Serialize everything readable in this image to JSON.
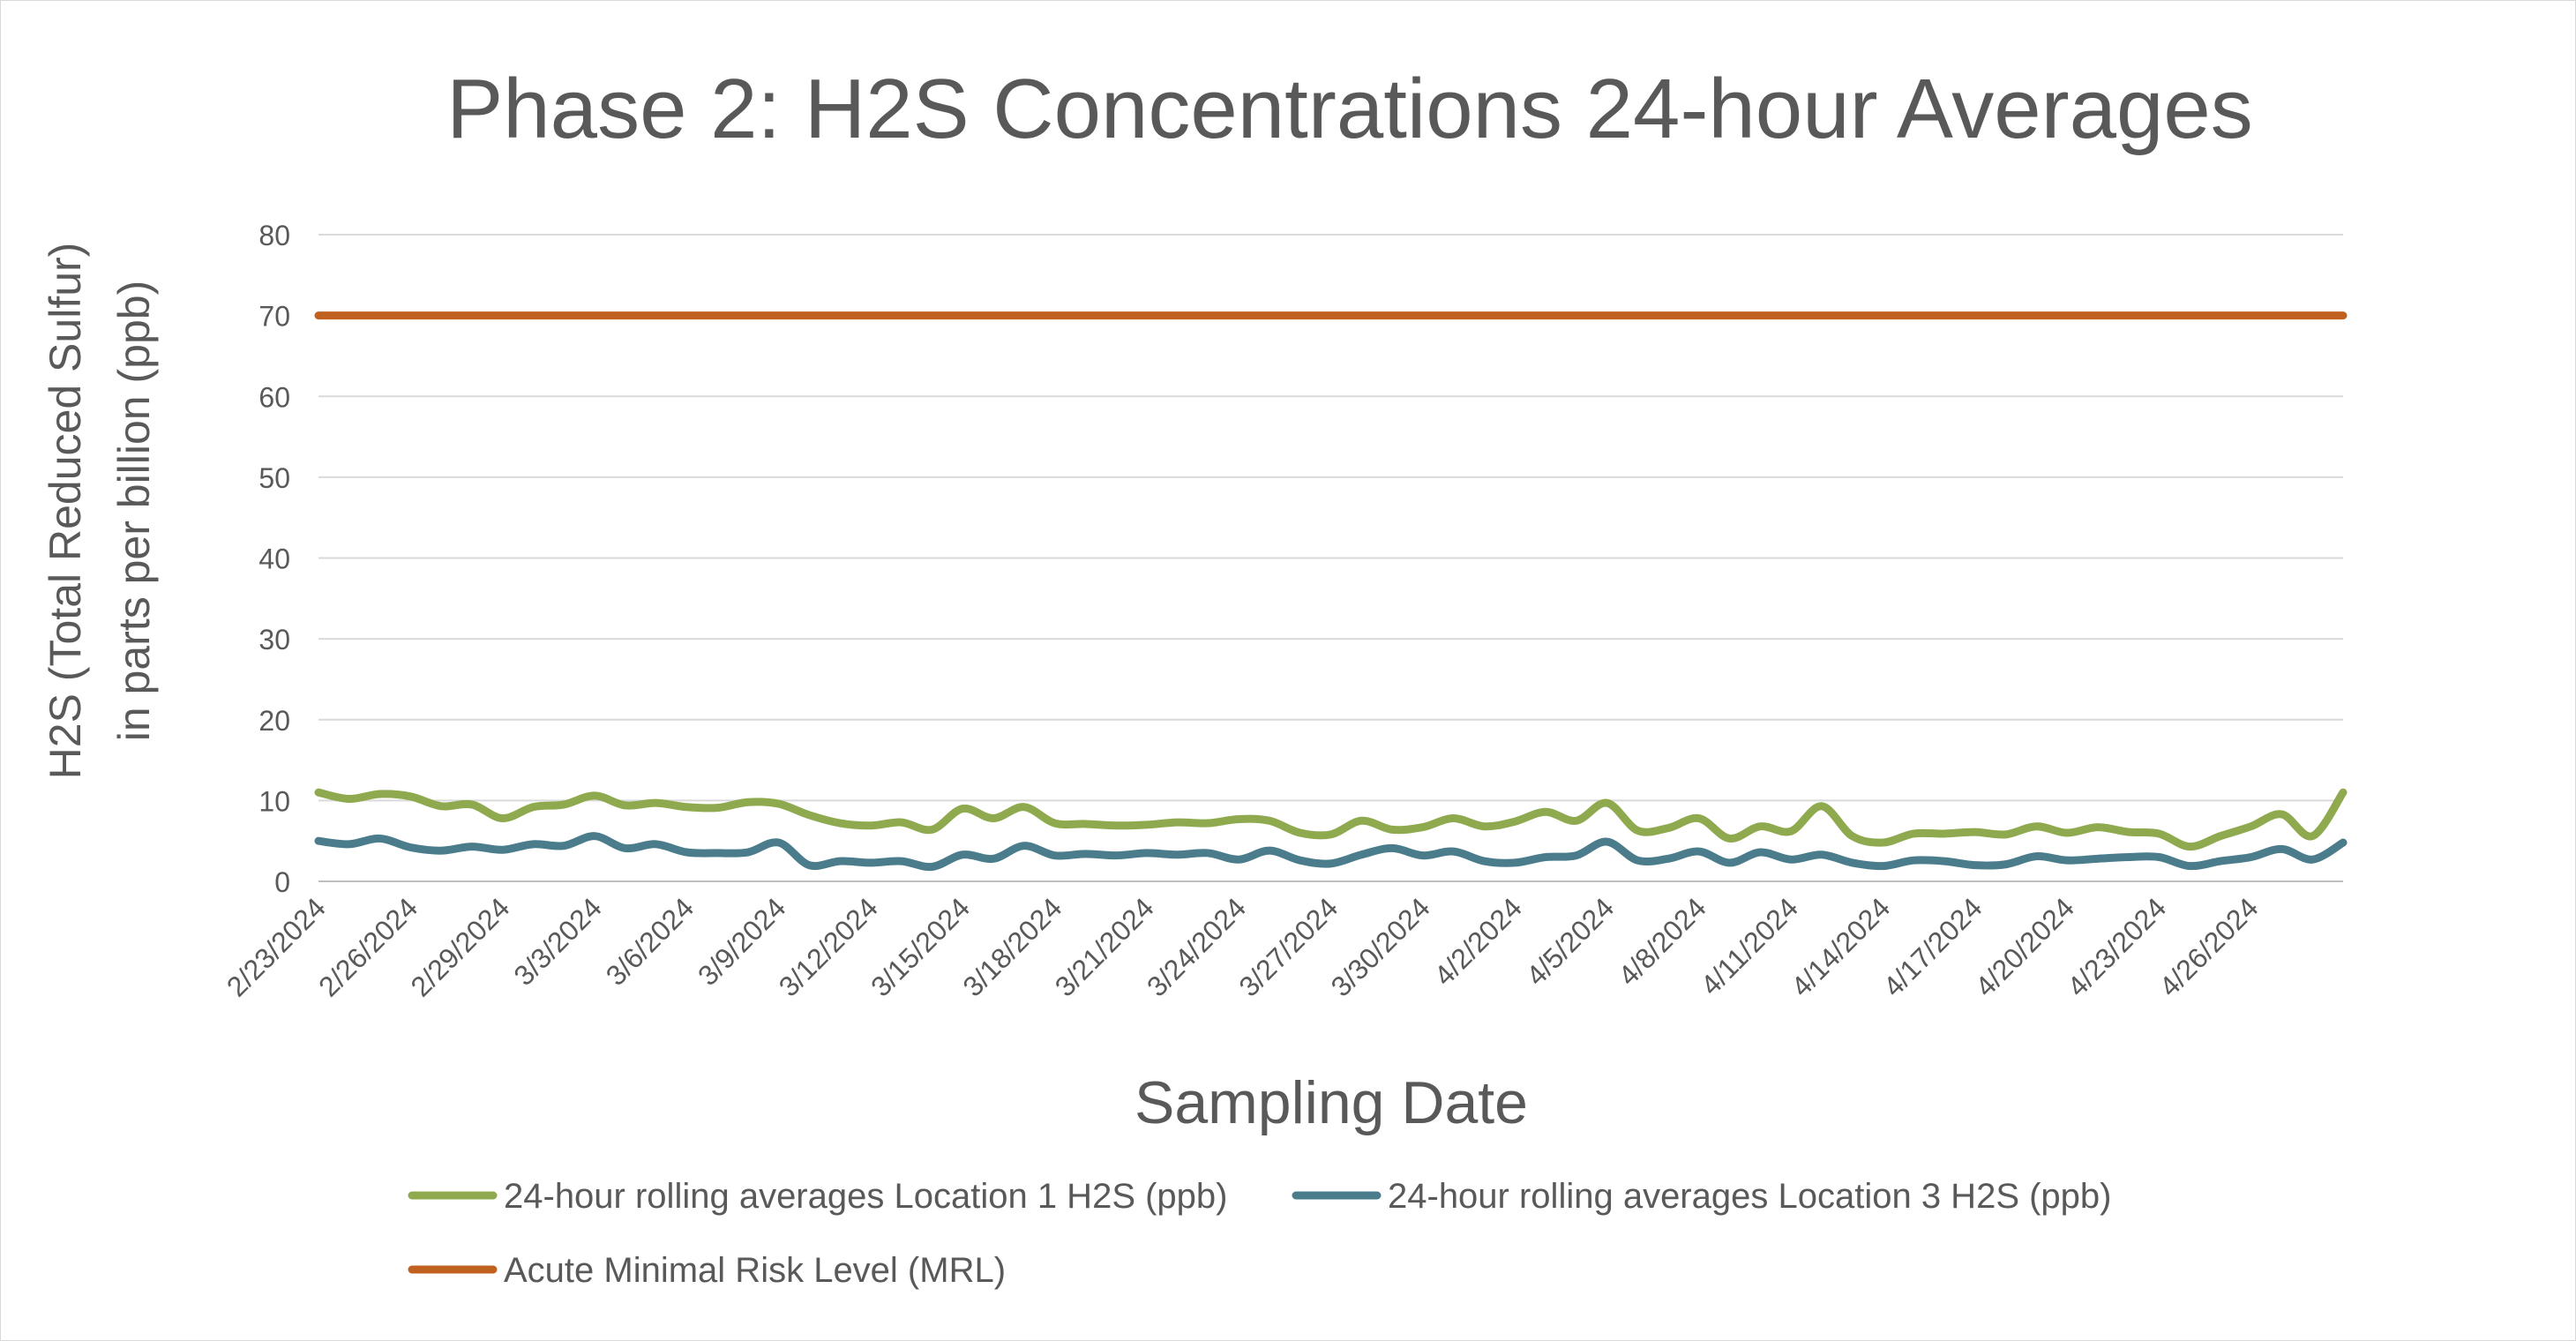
{
  "chart_data": {
    "type": "line",
    "title": "Phase 2: H2S Concentrations 24-hour Averages",
    "xlabel": "Sampling Date",
    "ylabel_lines": [
      "H2S (Total Reduced Sulfur)",
      "in parts per billion (ppb)"
    ],
    "ylim": [
      0,
      80
    ],
    "yticks": [
      0,
      10,
      20,
      30,
      40,
      50,
      60,
      70,
      80
    ],
    "x_start": "2/23/2024",
    "x_end": "4/29/2024",
    "x_tick_labels": [
      "2/23/2024",
      "2/26/2024",
      "2/29/2024",
      "3/3/2024",
      "3/6/2024",
      "3/9/2024",
      "3/12/2024",
      "3/15/2024",
      "3/18/2024",
      "3/21/2024",
      "3/24/2024",
      "3/27/2024",
      "3/30/2024",
      "4/2/2024",
      "4/5/2024",
      "4/8/2024",
      "4/11/2024",
      "4/14/2024",
      "4/17/2024",
      "4/20/2024",
      "4/23/2024",
      "4/26/2024"
    ],
    "grid": true,
    "legend_position": "bottom",
    "series": [
      {
        "name": "24-hour rolling averages Location 1 H2S (ppb)",
        "color": "#8faa4e",
        "x": [
          "2/23/2024",
          "2/24/2024",
          "2/25/2024",
          "2/26/2024",
          "2/27/2024",
          "2/28/2024",
          "2/29/2024",
          "3/1/2024",
          "3/2/2024",
          "3/3/2024",
          "3/4/2024",
          "3/5/2024",
          "3/6/2024",
          "3/7/2024",
          "3/8/2024",
          "3/9/2024",
          "3/10/2024",
          "3/11/2024",
          "3/12/2024",
          "3/13/2024",
          "3/14/2024",
          "3/15/2024",
          "3/16/2024",
          "3/17/2024",
          "3/18/2024",
          "3/19/2024",
          "3/20/2024",
          "3/21/2024",
          "3/22/2024",
          "3/23/2024",
          "3/24/2024",
          "3/25/2024",
          "3/26/2024",
          "3/27/2024",
          "3/28/2024",
          "3/29/2024",
          "3/30/2024",
          "3/31/2024",
          "4/1/2024",
          "4/2/2024",
          "4/3/2024",
          "4/4/2024",
          "4/5/2024",
          "4/6/2024",
          "4/7/2024",
          "4/8/2024",
          "4/9/2024",
          "4/10/2024",
          "4/11/2024",
          "4/12/2024",
          "4/13/2024",
          "4/14/2024",
          "4/15/2024",
          "4/16/2024",
          "4/17/2024",
          "4/18/2024",
          "4/19/2024",
          "4/20/2024",
          "4/21/2024",
          "4/22/2024",
          "4/23/2024",
          "4/24/2024",
          "4/25/2024",
          "4/26/2024",
          "4/27/2024",
          "4/28/2024",
          "4/29/2024"
        ],
        "values": [
          11,
          10.2,
          10.8,
          10.5,
          9.3,
          9.5,
          7.8,
          9.2,
          9.5,
          10.6,
          9.4,
          9.7,
          9.2,
          9.1,
          9.8,
          9.6,
          8.2,
          7.2,
          6.9,
          7.3,
          6.4,
          9.0,
          7.8,
          9.2,
          7.2,
          7.1,
          6.9,
          7.0,
          7.3,
          7.2,
          7.7,
          7.5,
          6.0,
          5.8,
          7.5,
          6.4,
          6.7,
          7.8,
          6.8,
          7.4,
          8.6,
          7.5,
          9.7,
          6.3,
          6.6,
          7.8,
          5.3,
          6.8,
          6.2,
          9.3,
          5.6,
          4.8,
          5.9,
          5.9,
          6.1,
          5.8,
          6.8,
          6.0,
          6.7,
          6.1,
          5.9,
          4.3,
          5.6,
          6.8,
          8.3,
          5.6,
          11
        ]
      },
      {
        "name": "24-hour rolling averages Location 3 H2S (ppb)",
        "color": "#4a7c8c",
        "x": [
          "2/23/2024",
          "2/24/2024",
          "2/25/2024",
          "2/26/2024",
          "2/27/2024",
          "2/28/2024",
          "2/29/2024",
          "3/1/2024",
          "3/2/2024",
          "3/3/2024",
          "3/4/2024",
          "3/5/2024",
          "3/6/2024",
          "3/7/2024",
          "3/8/2024",
          "3/9/2024",
          "3/10/2024",
          "3/11/2024",
          "3/12/2024",
          "3/13/2024",
          "3/14/2024",
          "3/15/2024",
          "3/16/2024",
          "3/17/2024",
          "3/18/2024",
          "3/19/2024",
          "3/20/2024",
          "3/21/2024",
          "3/22/2024",
          "3/23/2024",
          "3/24/2024",
          "3/25/2024",
          "3/26/2024",
          "3/27/2024",
          "3/28/2024",
          "3/29/2024",
          "3/30/2024",
          "3/31/2024",
          "4/1/2024",
          "4/2/2024",
          "4/3/2024",
          "4/4/2024",
          "4/5/2024",
          "4/6/2024",
          "4/7/2024",
          "4/8/2024",
          "4/9/2024",
          "4/10/2024",
          "4/11/2024",
          "4/12/2024",
          "4/13/2024",
          "4/14/2024",
          "4/15/2024",
          "4/16/2024",
          "4/17/2024",
          "4/18/2024",
          "4/19/2024",
          "4/20/2024",
          "4/21/2024",
          "4/22/2024",
          "4/23/2024",
          "4/24/2024",
          "4/25/2024",
          "4/26/2024",
          "4/27/2024",
          "4/28/2024",
          "4/29/2024"
        ],
        "values": [
          5,
          4.6,
          5.3,
          4.2,
          3.8,
          4.3,
          3.9,
          4.6,
          4.4,
          5.6,
          4.1,
          4.6,
          3.6,
          3.5,
          3.6,
          4.8,
          2.0,
          2.5,
          2.3,
          2.5,
          1.8,
          3.3,
          2.8,
          4.4,
          3.2,
          3.4,
          3.2,
          3.5,
          3.3,
          3.5,
          2.7,
          3.8,
          2.6,
          2.2,
          3.3,
          4.1,
          3.2,
          3.7,
          2.5,
          2.3,
          3.0,
          3.2,
          4.9,
          2.6,
          2.8,
          3.7,
          2.3,
          3.6,
          2.7,
          3.3,
          2.3,
          1.9,
          2.6,
          2.5,
          2.0,
          2.1,
          3.1,
          2.6,
          2.8,
          3.0,
          3.0,
          1.9,
          2.5,
          3.0,
          4.0,
          2.7,
          4.8
        ]
      },
      {
        "name": "Acute Minimal Risk Level (MRL)",
        "color": "#c0611f",
        "x": [
          "2/23/2024",
          "4/29/2024"
        ],
        "values": [
          70,
          70
        ]
      }
    ]
  }
}
